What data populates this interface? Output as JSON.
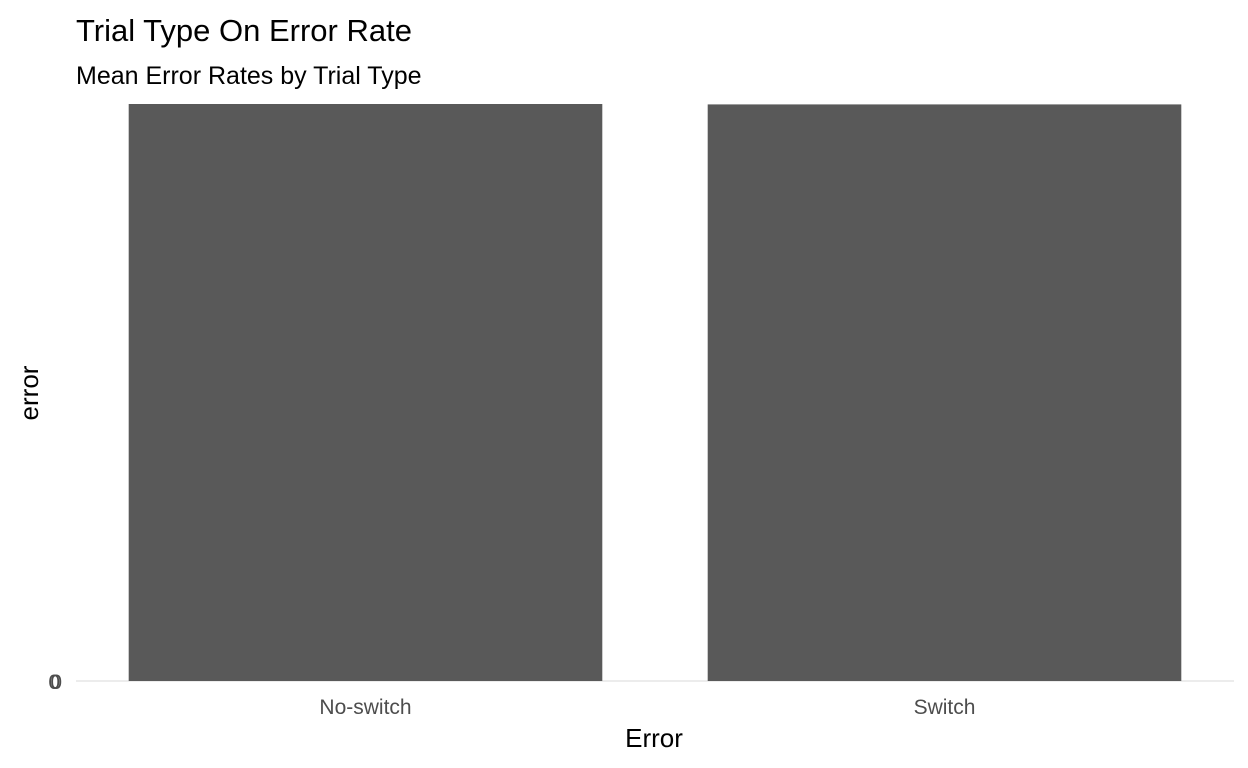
{
  "chart_data": {
    "type": "bar",
    "title": "Trial Type On Error Rate",
    "subtitle": "Mean Error Rates by Trial Type",
    "xlabel": "Error",
    "ylabel": "error",
    "categories": [
      "No-switch",
      "Switch"
    ],
    "values": [
      1.0,
      0.9993
    ],
    "ylim": [
      0,
      1.0
    ],
    "yticks": [
      "0"
    ],
    "grid": false,
    "legend": "none",
    "colors": {
      "bar": "#595959",
      "baseline": "#e5e5e5",
      "tick_text": "#4d4d4d",
      "text": "#000000",
      "background": "#ffffff"
    }
  }
}
